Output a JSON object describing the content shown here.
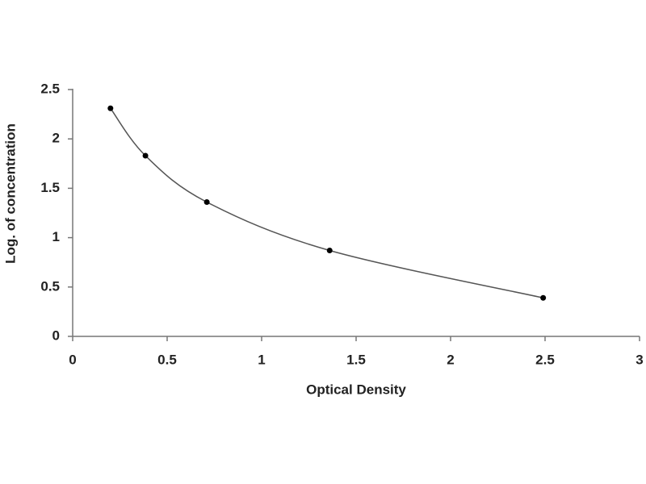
{
  "chart_data": {
    "type": "scatter",
    "xlabel": "Optical Density",
    "ylabel": "Log. of concentration",
    "x": [
      0.2,
      0.385,
      0.71,
      1.36,
      2.49
    ],
    "values": [
      2.31,
      1.83,
      1.36,
      0.87,
      0.39
    ],
    "color": "#000000",
    "line_color": "#555555",
    "smooth_curve": true,
    "xlim": [
      0,
      3
    ],
    "xticks": [
      0,
      0.5,
      1,
      1.5,
      2,
      2.5,
      3
    ],
    "ylim": [
      0,
      2.5
    ],
    "yticks": [
      0,
      0.5,
      1,
      1.5,
      2,
      2.5
    ],
    "grid": false
  }
}
